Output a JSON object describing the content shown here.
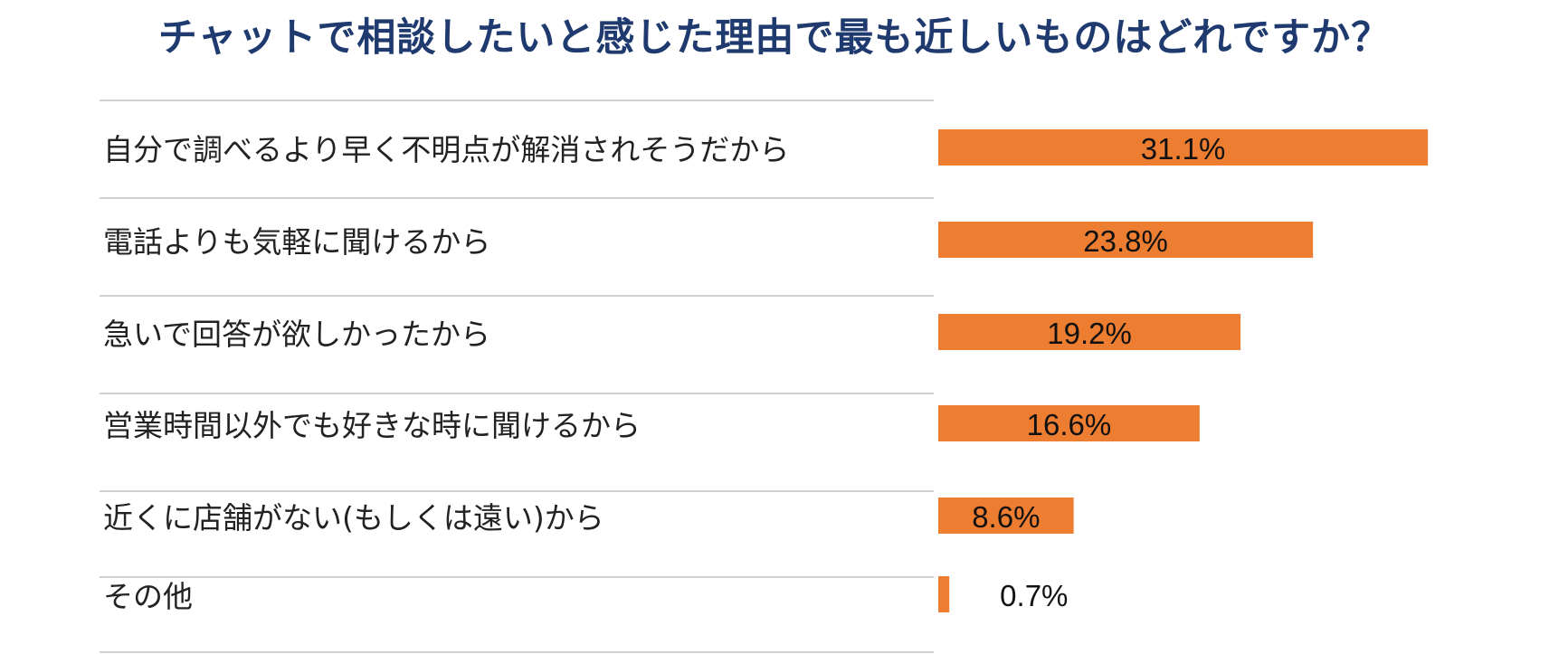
{
  "chart_data": {
    "type": "bar",
    "orientation": "horizontal",
    "title": "チャットで相談したいと感じた理由で最も近しいものはどれですか？",
    "categories": [
      "自分で調べるより早く不明点が解消されそうだから",
      "電話よりも気軽に聞けるから",
      "急いで回答が欲しかったから",
      "営業時間以外でも好きな時に聞けるから",
      "近くに店舗がない(もしくは遠い)から",
      "その他"
    ],
    "values": [
      31.1,
      23.8,
      19.2,
      16.6,
      8.6,
      0.7
    ],
    "value_labels": [
      "31.1%",
      "23.8%",
      "19.2%",
      "16.6%",
      "8.6%",
      "0.7%"
    ],
    "unit": "%",
    "xlim": [
      0,
      32
    ],
    "grid": false,
    "legend": "none",
    "colors": {
      "bar": "#ed7d31",
      "title": "#1f3a6e",
      "separator": "#d0d0d0"
    }
  }
}
